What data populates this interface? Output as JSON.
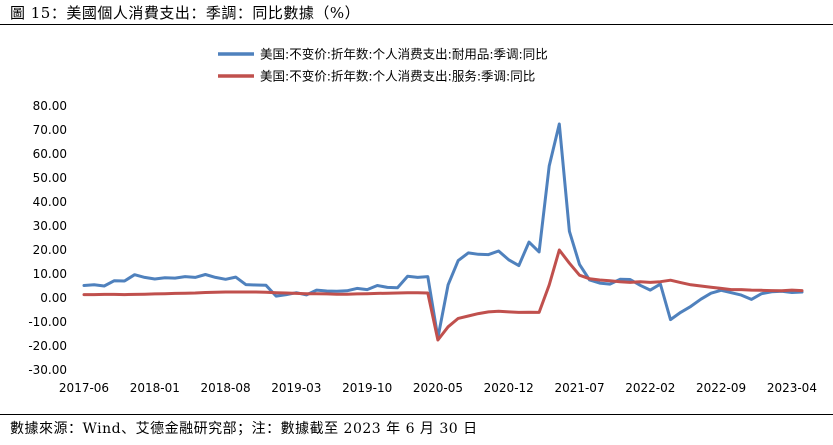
{
  "header": {
    "caption": "圖 15：美國個人消費支出：季調：同比數據（%）"
  },
  "footer": {
    "source": "數據來源：Wind、艾德金融研究部；注：數據截至 2023 年 6 月 30 日"
  },
  "chart_data": {
    "type": "line",
    "ylim": [
      -30,
      80
    ],
    "yticks": [
      "80.00",
      "70.00",
      "60.00",
      "50.00",
      "40.00",
      "30.00",
      "20.00",
      "10.00",
      "0.00",
      "-10.00",
      "-20.00",
      "-30.00"
    ],
    "ytick_values": [
      80,
      70,
      60,
      50,
      40,
      30,
      20,
      10,
      0,
      -10,
      -20,
      -30
    ],
    "xtick_labels": [
      "2017-06",
      "2018-01",
      "2018-08",
      "2019-03",
      "2019-10",
      "2020-05",
      "2020-12",
      "2021-07",
      "2022-02",
      "2022-09",
      "2023-04"
    ],
    "xtick_index": [
      0,
      7,
      14,
      21,
      28,
      35,
      42,
      49,
      56,
      63,
      70
    ],
    "legend_position": "top-center",
    "series": [
      {
        "name": "美国:不变价:折年数:个人消费支出:耐用品:季调:同比",
        "color": "#4f81bd",
        "values": [
          5.2,
          5.5,
          5,
          7.2,
          7.1,
          9.7,
          8.6,
          7.9,
          8.4,
          8.3,
          8.9,
          8.6,
          9.8,
          8.6,
          7.8,
          8.7,
          5.6,
          5.4,
          5.3,
          0.8,
          1.4,
          2.2,
          1.3,
          3.3,
          2.9,
          2.8,
          3,
          4,
          3.5,
          5.2,
          4.4,
          4.3,
          9.1,
          8.6,
          8.9,
          -16.6,
          5.5,
          15.6,
          18.8,
          18.2,
          18.1,
          19.6,
          15.9,
          13.5,
          23.3,
          19.2,
          55,
          72.5,
          27.8,
          14,
          7.5,
          6.2,
          5.8,
          7.8,
          7.7,
          5.3,
          3.3,
          5.8,
          -9,
          -6,
          -3.5,
          -0.5,
          2,
          3.2,
          2.2,
          1.2,
          -0.6,
          1.8,
          2.6,
          2.8,
          2.3,
          2.5
        ]
      },
      {
        "name": "美国:不变价:折年数:个人消费支出:服务:季调:同比",
        "color": "#c0504d",
        "values": [
          1.4,
          1.4,
          1.5,
          1.5,
          1.4,
          1.5,
          1.6,
          1.7,
          1.8,
          1.9,
          2,
          2.1,
          2.3,
          2.4,
          2.5,
          2.5,
          2.5,
          2.5,
          2.4,
          2.2,
          2.1,
          1.9,
          1.8,
          1.8,
          1.7,
          1.6,
          1.6,
          1.7,
          1.8,
          1.9,
          2,
          2.1,
          2.2,
          2.2,
          2.1,
          -17.5,
          -12,
          -8.5,
          -7.5,
          -6.5,
          -5.8,
          -5.5,
          -5.8,
          -6,
          -5.9,
          -6,
          5.4,
          20,
          14.5,
          9.5,
          8,
          7.5,
          7.2,
          6.8,
          6.5,
          6.8,
          6.5,
          6.8,
          7.4,
          6.4,
          5.5,
          5,
          4.5,
          4,
          3.5,
          3.5,
          3.3,
          3.2,
          3.1,
          3,
          3.3,
          3.1
        ]
      }
    ]
  }
}
